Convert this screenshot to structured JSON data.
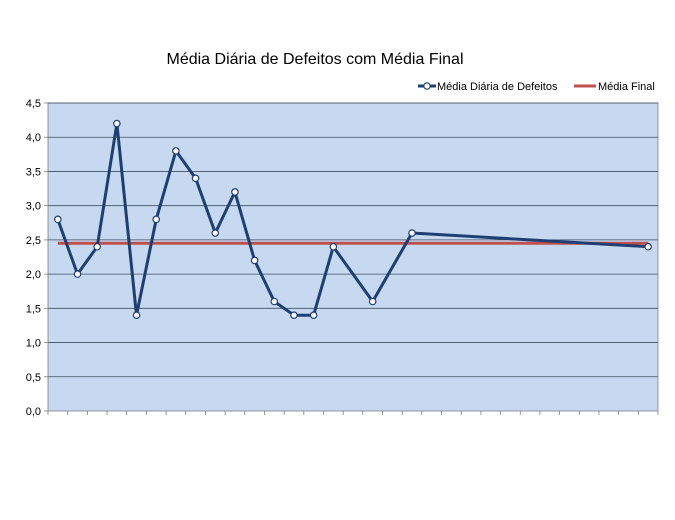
{
  "chart_data": {
    "type": "line",
    "title": "Média Diária de Defeitos com Média Final",
    "xlabel": "",
    "ylabel": "",
    "ylim": [
      0,
      4.5
    ],
    "yticks": [
      "0,0",
      "0,5",
      "1,0",
      "1,5",
      "2,0",
      "2,5",
      "3,0",
      "3,5",
      "4,0",
      "4,5"
    ],
    "grid": true,
    "legend": "top-right",
    "x_slots": 31,
    "series": [
      {
        "name": "Média Diária de Defeitos",
        "color": "#1f3f73",
        "marker": "circle",
        "points": [
          {
            "x": 0,
            "y": 2.8
          },
          {
            "x": 1,
            "y": 2.0
          },
          {
            "x": 2,
            "y": 2.4
          },
          {
            "x": 3,
            "y": 4.2
          },
          {
            "x": 4,
            "y": 1.4
          },
          {
            "x": 5,
            "y": 2.8
          },
          {
            "x": 6,
            "y": 3.8
          },
          {
            "x": 7,
            "y": 3.4
          },
          {
            "x": 8,
            "y": 2.6
          },
          {
            "x": 9,
            "y": 3.2
          },
          {
            "x": 10,
            "y": 2.2
          },
          {
            "x": 11,
            "y": 1.6
          },
          {
            "x": 12,
            "y": 1.4
          },
          {
            "x": 13,
            "y": 1.4
          },
          {
            "x": 14,
            "y": 2.4
          },
          {
            "x": 16,
            "y": 1.6
          },
          {
            "x": 18,
            "y": 2.6
          },
          {
            "x": 30,
            "y": 2.4
          }
        ]
      },
      {
        "name": "Média Final",
        "color": "#c0504d",
        "value": 2.45
      }
    ]
  }
}
